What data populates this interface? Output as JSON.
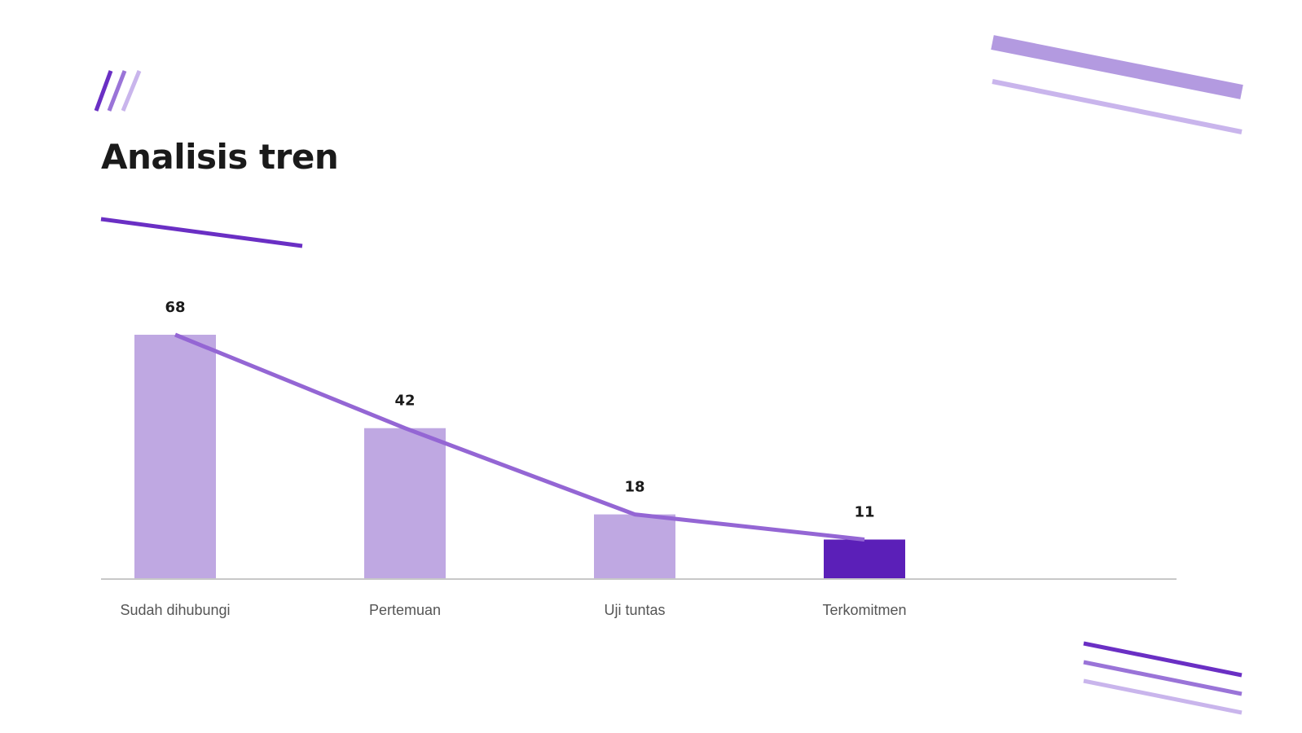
{
  "slide": {
    "title": "Analisis tren"
  },
  "colors": {
    "bar_light": "#bfa8e2",
    "bar_highlight": "#5b1fb8",
    "trend_line": "#9466d4",
    "deco_dark": "#6a2fc4",
    "deco_mid": "#9a74d8",
    "deco_light": "#c9b5ec",
    "axis": "#c8c8c8"
  },
  "chart_data": {
    "type": "bar",
    "categories": [
      "Sudah dihubungi",
      "Pertemuan",
      "Uji tuntas",
      "Terkomitmen"
    ],
    "values": [
      68,
      42,
      18,
      11
    ],
    "highlight_index": 3,
    "trend_line": true,
    "title": "",
    "xlabel": "",
    "ylabel": "",
    "ylim": [
      0,
      68
    ],
    "grid": false,
    "legend": "none"
  }
}
